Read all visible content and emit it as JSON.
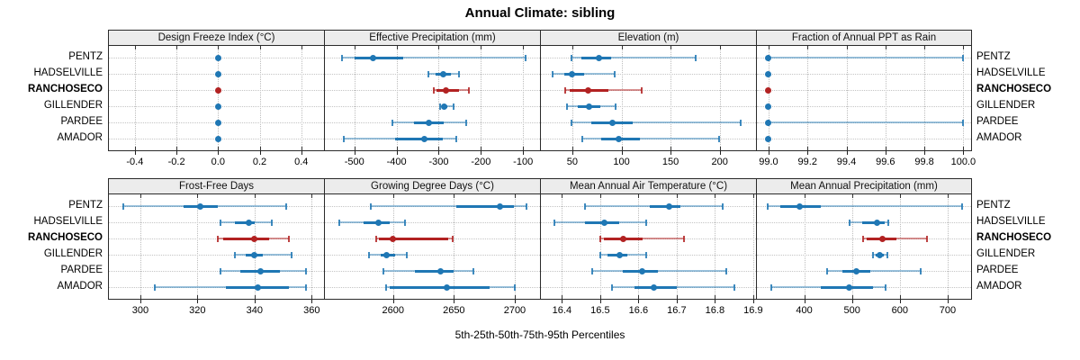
{
  "title": "Annual Climate: sibling",
  "caption": "5th-25th-50th-75th-95th Percentiles",
  "colors": {
    "normal": "#1f77b4",
    "normal_whisker": "rgba(31,119,180,0.45)",
    "normal_cap": "rgba(31,119,180,0.85)",
    "highlight": "#b22222",
    "highlight_whisker": "rgba(178,34,34,0.5)",
    "highlight_cap": "rgba(178,34,34,0.85)",
    "strip_bg": "#ececec",
    "panel_border": "#2a2a2a",
    "grid": "#bdbdbd"
  },
  "chart_data": {
    "type": "trellis-dotplot-percentiles",
    "title": "Annual Climate: sibling",
    "caption": "5th-25th-50th-75th-95th Percentiles",
    "percentiles": [
      5,
      25,
      50,
      75,
      95
    ],
    "stations": [
      "PENTZ",
      "HADSELVILLE",
      "RANCHOSECO",
      "GILLENDER",
      "PARDEE",
      "AMADOR"
    ],
    "highlight_station": "RANCHOSECO",
    "layout": {
      "rows": 2,
      "cols": 4,
      "grid": "dotted",
      "legend": "none"
    },
    "panels": [
      {
        "title": "Design Freeze Index (°C)",
        "xlim": [
          -0.525,
          0.505
        ],
        "tick_values": [
          -0.4,
          -0.2,
          0.0,
          0.2,
          0.4
        ],
        "tick_labels": [
          "-0.4",
          "-0.2",
          "0.0",
          "0.2",
          "0.4"
        ],
        "series": [
          [
            0,
            0,
            0,
            0,
            0
          ],
          [
            0,
            0,
            0,
            0,
            0
          ],
          [
            0,
            0,
            0,
            0,
            0
          ],
          [
            0,
            0,
            0,
            0,
            0
          ],
          [
            0,
            0,
            0,
            0,
            0
          ],
          [
            0,
            0,
            0,
            0,
            0
          ]
        ]
      },
      {
        "title": "Effective Precipitation (mm)",
        "xlim": [
          -570,
          -62
        ],
        "tick_values": [
          -500,
          -400,
          -300,
          -200,
          -100
        ],
        "tick_labels": [
          "-500",
          "-400",
          "-300",
          "-200",
          "-100"
        ],
        "series": [
          [
            -530,
            -500,
            -455,
            -385,
            -95
          ],
          [
            -325,
            -308,
            -290,
            -272,
            -252
          ],
          [
            -312,
            -306,
            -283,
            -252,
            -228
          ],
          [
            -297,
            -292,
            -287,
            -279,
            -265
          ],
          [
            -410,
            -358,
            -324,
            -289,
            -235
          ],
          [
            -526,
            -403,
            -334,
            -290,
            -258
          ]
        ]
      },
      {
        "title": "Elevation (m)",
        "xlim": [
          18,
          236
        ],
        "tick_values": [
          50,
          100,
          150,
          200
        ],
        "tick_labels": [
          "50",
          "100",
          "150",
          "200"
        ],
        "series": [
          [
            49,
            59,
            77,
            89,
            176
          ],
          [
            30,
            42,
            50,
            62,
            93
          ],
          [
            43,
            47,
            66,
            87,
            121
          ],
          [
            45,
            56,
            67,
            78,
            94
          ],
          [
            49,
            69,
            91,
            111,
            221
          ],
          [
            60,
            79,
            97,
            119,
            199
          ]
        ]
      },
      {
        "title": "Fraction of Annual PPT as Rain",
        "xlim": [
          98.94,
          100.04
        ],
        "tick_values": [
          99.0,
          99.2,
          99.4,
          99.6,
          99.8,
          100.0
        ],
        "tick_labels": [
          "99.0",
          "99.2",
          "99.4",
          "99.6",
          "99.8",
          "100.0"
        ],
        "series": [
          [
            99,
            99,
            99,
            99,
            100
          ],
          [
            99,
            99,
            99,
            99,
            99
          ],
          [
            99,
            99,
            99,
            99,
            99
          ],
          [
            99,
            99,
            99,
            99,
            99
          ],
          [
            99,
            99,
            99,
            99,
            100
          ],
          [
            99,
            99,
            99,
            99,
            99
          ]
        ]
      },
      {
        "title": "Frost-Free Days",
        "xlim": [
          289,
          364
        ],
        "tick_values": [
          300,
          320,
          340,
          360
        ],
        "tick_labels": [
          "300",
          "320",
          "340",
          "360"
        ],
        "series": [
          [
            294,
            315,
            321,
            327,
            351
          ],
          [
            328,
            333,
            338,
            340,
            346
          ],
          [
            327,
            329,
            340,
            345,
            352
          ],
          [
            333,
            337,
            340,
            343,
            353
          ],
          [
            328,
            335,
            342,
            349,
            358
          ],
          [
            305,
            330,
            341,
            352,
            358
          ]
        ]
      },
      {
        "title": "Growing Degree Days (°C)",
        "xlim": [
          2544,
          2720
        ],
        "tick_values": [
          2600,
          2650,
          2700
        ],
        "tick_labels": [
          "2600",
          "2650",
          "2700"
        ],
        "series": [
          [
            2582,
            2652,
            2688,
            2699,
            2710
          ],
          [
            2556,
            2576,
            2588,
            2597,
            2610
          ],
          [
            2586,
            2588,
            2600,
            2645,
            2649
          ],
          [
            2580,
            2590,
            2595,
            2602,
            2611
          ],
          [
            2592,
            2618,
            2639,
            2650,
            2666
          ],
          [
            2594,
            2597,
            2644,
            2679,
            2700
          ]
        ]
      },
      {
        "title": "Mean Annual Air Temperature (°C)",
        "xlim": [
          16.345,
          16.905
        ],
        "tick_values": [
          16.4,
          16.5,
          16.6,
          16.7,
          16.8,
          16.9
        ],
        "tick_labels": [
          "16.4",
          "16.5",
          "16.6",
          "16.7",
          "16.8",
          "16.9"
        ],
        "series": [
          [
            16.46,
            16.63,
            16.68,
            16.71,
            16.82
          ],
          [
            16.38,
            16.46,
            16.51,
            16.55,
            16.62
          ],
          [
            16.5,
            16.51,
            16.56,
            16.61,
            16.72
          ],
          [
            16.5,
            16.52,
            16.55,
            16.57,
            16.62
          ],
          [
            16.48,
            16.56,
            16.61,
            16.65,
            16.83
          ],
          [
            16.53,
            16.59,
            16.64,
            16.7,
            16.85
          ]
        ]
      },
      {
        "title": "Mean Annual Precipitation (mm)",
        "xlim": [
          301,
          749
        ],
        "tick_values": [
          400,
          500,
          600,
          700
        ],
        "tick_labels": [
          "400",
          "500",
          "600",
          "700"
        ],
        "series": [
          [
            323,
            349,
            390,
            435,
            730
          ],
          [
            494,
            522,
            552,
            569,
            575
          ],
          [
            524,
            531,
            563,
            593,
            657
          ],
          [
            543,
            549,
            558,
            567,
            573
          ],
          [
            448,
            480,
            509,
            538,
            644
          ],
          [
            331,
            434,
            494,
            543,
            571
          ]
        ]
      }
    ]
  }
}
